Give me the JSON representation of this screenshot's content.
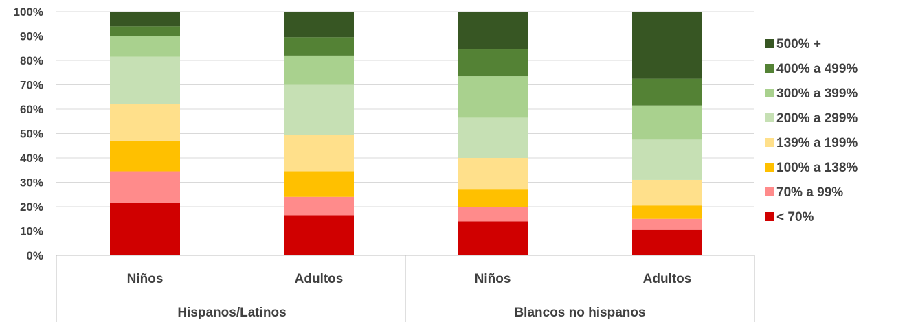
{
  "chart_data": {
    "type": "bar",
    "stacked": true,
    "groups": [
      {
        "label": "Hispanos/Latinos",
        "categories": [
          "Niños",
          "Adultos"
        ]
      },
      {
        "label": "Blancos no hispanos",
        "categories": [
          "Niños",
          "Adultos"
        ]
      }
    ],
    "categories": [
      "Niños",
      "Adultos",
      "Niños",
      "Adultos"
    ],
    "series": [
      {
        "name": "< 70%",
        "color": "#d00000",
        "values": [
          21.5,
          16.5,
          14,
          10.5
        ]
      },
      {
        "name": "70% a 99%",
        "color": "#ff8b8b",
        "values": [
          13,
          7.5,
          6,
          4.5
        ]
      },
      {
        "name": "100% a 138%",
        "color": "#ffc000",
        "values": [
          12.5,
          10.5,
          7,
          5.5
        ]
      },
      {
        "name": "139% a 199%",
        "color": "#ffe08b",
        "values": [
          15,
          15,
          13,
          10.5
        ]
      },
      {
        "name": "200% a 299%",
        "color": "#c6e0b4",
        "values": [
          19.5,
          20.5,
          16.5,
          16.5
        ]
      },
      {
        "name": "300% a 399%",
        "color": "#a9d18e",
        "values": [
          8.5,
          12,
          17,
          14
        ]
      },
      {
        "name": "400% a 499%",
        "color": "#548235",
        "values": [
          4,
          7.5,
          11,
          11
        ]
      },
      {
        "name": "500% +",
        "color": "#375623",
        "values": [
          6,
          10.5,
          15.5,
          27.5
        ]
      }
    ],
    "yticks": [
      "0%",
      "10%",
      "20%",
      "30%",
      "40%",
      "50%",
      "60%",
      "70%",
      "80%",
      "90%",
      "100%"
    ],
    "ylim": [
      0,
      100
    ],
    "grid": true,
    "legend_position": "right"
  }
}
